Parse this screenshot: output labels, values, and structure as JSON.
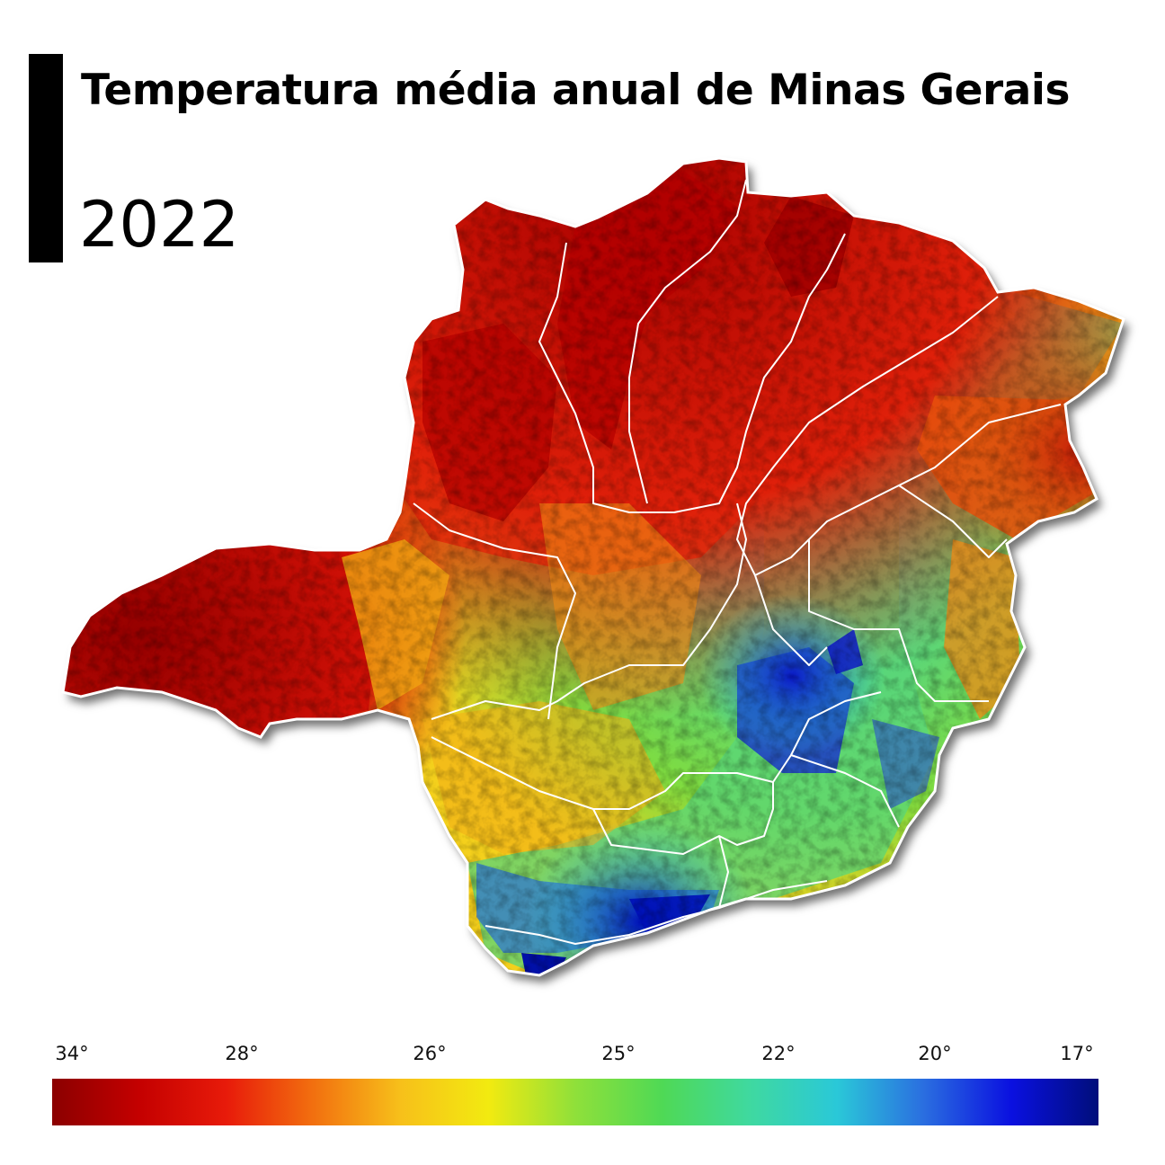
{
  "map": {
    "title": "Temperatura média anual de Minas Gerais",
    "year": "2022",
    "region": "Minas Gerais"
  },
  "legend": {
    "ticks": [
      "34°",
      "28°",
      "26°",
      "25°",
      "22°",
      "20°",
      "17°"
    ],
    "tick_values": [
      34,
      28,
      26,
      25,
      22,
      20,
      17
    ],
    "colors": [
      "#8b0000",
      "#c40000",
      "#e81b0a",
      "#f2700f",
      "#f7c01a",
      "#f2ea10",
      "#8fe03a",
      "#4fd955",
      "#3fd9a0",
      "#2ac8d8",
      "#2a6ee0",
      "#0a10e0",
      "#000e7a"
    ]
  },
  "colors": {
    "hot": "#b00000",
    "warm": "#f07010",
    "mild": "#f5e020",
    "cool": "#50d880",
    "cold": "#1a1fd0",
    "boundary": "#ffffff"
  }
}
